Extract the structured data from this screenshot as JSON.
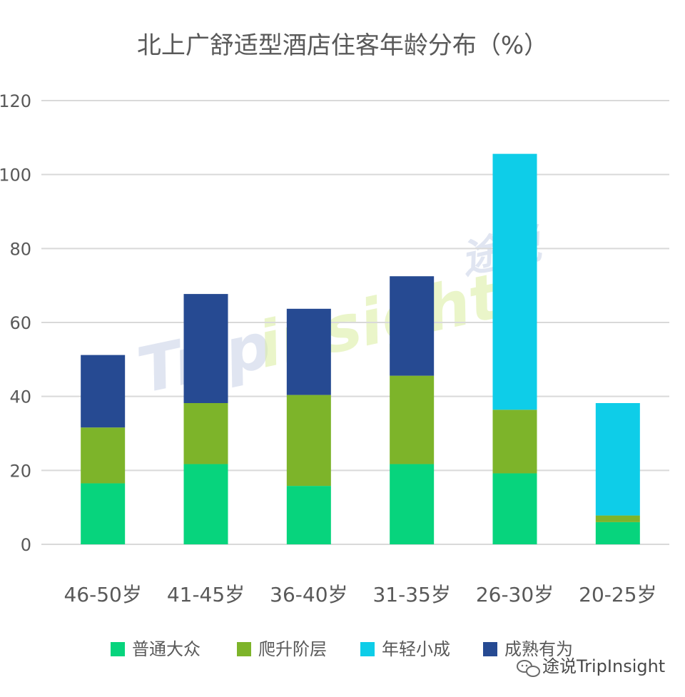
{
  "chart_data": {
    "type": "bar",
    "stacked": true,
    "title": "北上广舒适型酒店住客年龄分布（%）",
    "xlabel": "",
    "ylabel": "",
    "ylim": [
      0,
      120
    ],
    "yticks": [
      0,
      20,
      40,
      60,
      80,
      100,
      120
    ],
    "grid": true,
    "legend_position": "bottom",
    "categories": [
      "46-50岁",
      "41-45岁",
      "36-40岁",
      "31-35岁",
      "26-30岁",
      "20-25岁"
    ],
    "series": [
      {
        "name": "普通大众",
        "color": "#07D47D",
        "values": [
          16.5,
          21.7,
          15.8,
          21.7,
          19.2,
          6.0
        ]
      },
      {
        "name": "爬升阶层",
        "color": "#7DB42A",
        "values": [
          15.1,
          16.5,
          24.6,
          23.9,
          17.2,
          1.8
        ]
      },
      {
        "name": "年轻小成",
        "color": "#0ECDE8",
        "values": [
          0,
          0,
          0,
          0,
          69.2,
          30.4
        ]
      },
      {
        "name": "成熟有为",
        "color": "#264A92",
        "values": [
          19.6,
          29.5,
          23.3,
          26.9,
          0,
          0
        ]
      }
    ]
  },
  "watermark": {
    "center_text_1": "Trip",
    "center_text_2": "insight",
    "center_text_3": "途说",
    "corner_icon": "wechat-icon",
    "corner_text": "途说TripInsight"
  }
}
